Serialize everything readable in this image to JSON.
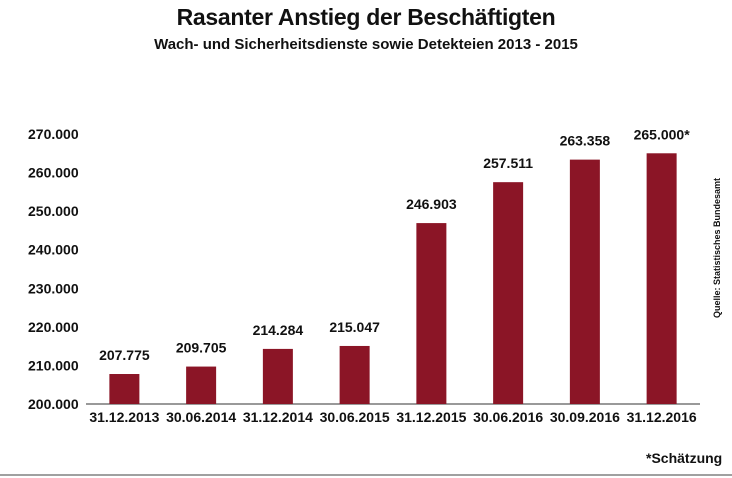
{
  "colors": {
    "bar": "#8b1526",
    "text": "#111111"
  },
  "source_note": "Quelle: Statistisches Bundesamt",
  "footnote": "*Schätzung",
  "chart_data": {
    "type": "bar",
    "title": "Rasanter Anstieg der Beschäftigten",
    "subtitle": "Wach- und Sicherheitsdienste sowie Detekteien 2013 - 2015",
    "categories": [
      "31.12.2013",
      "30.06.2014",
      "31.12.2014",
      "30.06.2015",
      "31.12.2015",
      "30.06.2016",
      "30.09.2016",
      "31.12.2016"
    ],
    "values": [
      207775,
      209705,
      214284,
      215047,
      246903,
      257511,
      263358,
      265000
    ],
    "data_labels": [
      "207.775",
      "209.705",
      "214.284",
      "215.047",
      "246.903",
      "257.511",
      "263.358",
      "265.000*"
    ],
    "y_ticks": [
      200000,
      210000,
      220000,
      230000,
      240000,
      250000,
      260000,
      270000
    ],
    "y_tick_labels": [
      "200.000",
      "210.000",
      "220.000",
      "230.000",
      "240.000",
      "250.000",
      "260.000",
      "270.000"
    ],
    "ylim": [
      200000,
      270000
    ],
    "xlabel": "",
    "ylabel": "",
    "grid": false,
    "legend": "none"
  }
}
